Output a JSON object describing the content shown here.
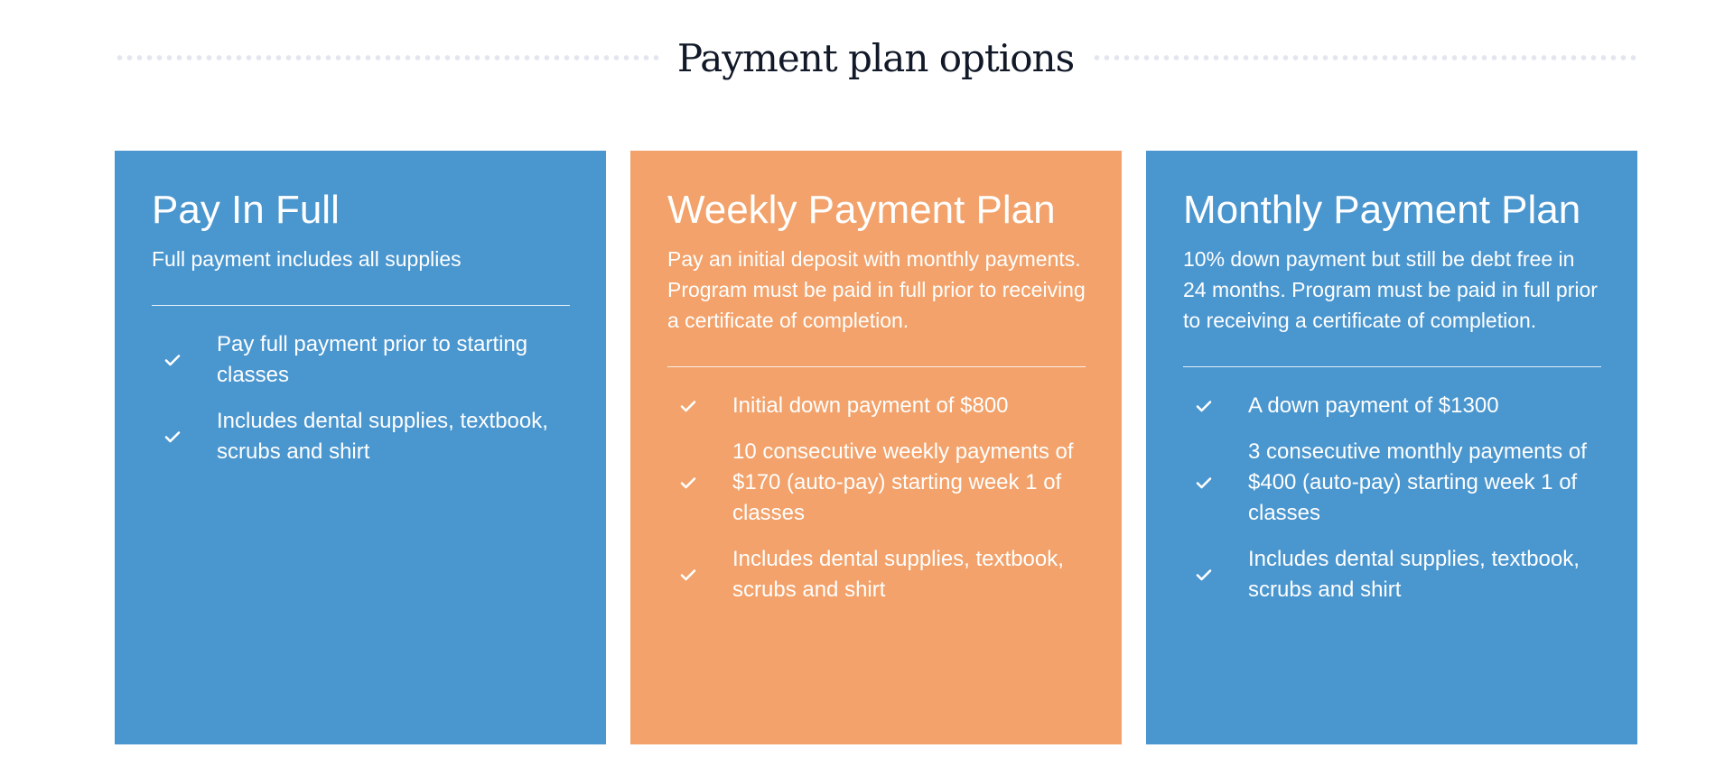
{
  "heading": "Payment plan options",
  "colors": {
    "blue": "#4a96cf",
    "orange": "#f2a26a"
  },
  "cards": [
    {
      "title": "Pay In Full",
      "subtitle": "Full payment includes all supplies",
      "color": "#4a96cf",
      "items": [
        {
          "icon": "check-icon",
          "text": "Pay full payment prior to starting classes"
        },
        {
          "icon": "check-icon",
          "text": "Includes dental supplies, textbook, scrubs and shirt"
        }
      ]
    },
    {
      "title": "Weekly Payment Plan",
      "subtitle": "Pay an initial deposit with monthly payments. Program must be paid in full prior to receiving a certificate of completion.",
      "color": "#f2a26a",
      "items": [
        {
          "icon": "check-icon",
          "text": "Initial down payment of $800"
        },
        {
          "icon": "check-icon",
          "text": "10 consecutive weekly payments of $170 (auto-pay) starting week 1 of classes"
        },
        {
          "icon": "check-icon",
          "text": "Includes dental supplies, textbook, scrubs and shirt"
        }
      ]
    },
    {
      "title": "Monthly Payment Plan",
      "subtitle": "10% down payment but still be debt free in 24 months. Program must be paid in full prior to receiving a certificate of completion.",
      "color": "#4a96cf",
      "items": [
        {
          "icon": "check-icon",
          "text": "A down payment of $1300"
        },
        {
          "icon": "check-icon",
          "text": "3 consecutive monthly payments of $400 (auto-pay) starting week 1 of classes"
        },
        {
          "icon": "check-icon",
          "text": "Includes dental supplies, textbook, scrubs and shirt"
        }
      ]
    }
  ]
}
